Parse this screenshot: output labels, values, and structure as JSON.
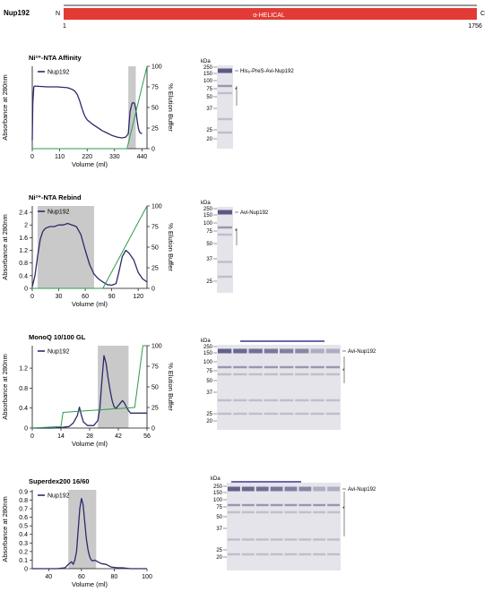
{
  "header": {
    "protein": "Nup192",
    "n_label": "N",
    "c_label": "C",
    "start": "1",
    "end": "1756",
    "domain_label": "α-HELICAL",
    "domain_color": "#e23b35"
  },
  "colors": {
    "trace": "#2b2a6a",
    "elution": "#2e9b4a",
    "shade": "#c9c9c9",
    "gel_band": "#4a4a7a",
    "fraction_bar": "#3b3590"
  },
  "chart_data": [
    {
      "type": "line",
      "title": "Ni²⁺-NTA Affinity",
      "xlabel": "Volume (ml)",
      "ylabel": "Absorbance at 280nm",
      "y2label": "% Elution Buffer",
      "legend": "Nup192",
      "legend_position": "top-left",
      "xlim": [
        0,
        460
      ],
      "xticks": [
        0,
        110,
        220,
        330,
        440
      ],
      "yticks_left": [],
      "ylim": [
        0,
        1
      ],
      "y2lim": [
        0,
        100
      ],
      "y2ticks": [
        0,
        25,
        50,
        75,
        100
      ],
      "shaded_regions": [
        [
          385,
          415
        ]
      ],
      "series": [
        {
          "name": "Nup192",
          "axis": "left",
          "x": [
            0,
            2,
            6,
            10,
            60,
            100,
            140,
            150,
            160,
            170,
            180,
            190,
            200,
            210,
            220,
            240,
            260,
            280,
            300,
            320,
            340,
            360,
            375,
            385,
            392,
            400,
            405,
            410,
            415,
            420,
            425,
            430,
            440
          ],
          "y": [
            0.1,
            0.55,
            0.75,
            0.76,
            0.75,
            0.75,
            0.74,
            0.73,
            0.72,
            0.7,
            0.66,
            0.58,
            0.48,
            0.4,
            0.35,
            0.3,
            0.26,
            0.22,
            0.19,
            0.16,
            0.14,
            0.13,
            0.14,
            0.18,
            0.45,
            0.55,
            0.56,
            0.55,
            0.48,
            0.35,
            0.25,
            0.2,
            0.18
          ]
        },
        {
          "name": "Elution",
          "axis": "right",
          "x": [
            0,
            380,
            460
          ],
          "y": [
            0,
            0,
            100
          ]
        }
      ]
    },
    {
      "type": "line",
      "title": "Ni²⁺-NTA Rebind",
      "xlabel": "Volume (ml)",
      "ylabel": "Absorbance at 280nm",
      "y2label": "% Elution Buffer",
      "legend": "Nup192",
      "legend_position": "top-left",
      "xlim": [
        0,
        130
      ],
      "xticks": [
        0,
        30,
        60,
        90,
        120
      ],
      "ylim": [
        0,
        2.6
      ],
      "yticks_left": [
        0,
        0.4,
        0.8,
        1.2,
        1.6,
        2.0,
        2.4
      ],
      "y2lim": [
        0,
        100
      ],
      "y2ticks": [
        0,
        25,
        50,
        75,
        100
      ],
      "shaded_regions": [
        [
          6,
          70
        ]
      ],
      "series": [
        {
          "name": "Nup192",
          "axis": "left",
          "x": [
            0,
            3,
            6,
            9,
            12,
            15,
            20,
            25,
            30,
            35,
            40,
            45,
            50,
            55,
            60,
            65,
            70,
            75,
            80,
            85,
            90,
            95,
            98,
            102,
            106,
            110,
            115,
            120,
            125,
            130
          ],
          "y": [
            0.05,
            0.4,
            1.0,
            1.55,
            1.8,
            1.9,
            1.95,
            1.95,
            2.0,
            2.0,
            2.05,
            2.0,
            1.95,
            1.7,
            1.2,
            0.75,
            0.45,
            0.3,
            0.2,
            0.12,
            0.1,
            0.15,
            0.5,
            1.0,
            1.2,
            1.1,
            0.9,
            0.5,
            0.3,
            0.2
          ]
        },
        {
          "name": "Elution",
          "axis": "right",
          "x": [
            0,
            80,
            130
          ],
          "y": [
            0,
            0,
            100
          ]
        }
      ]
    },
    {
      "type": "line",
      "title": "MonoQ 10/100 GL",
      "xlabel": "Volume (ml)",
      "ylabel": "Absorbance at 280nm",
      "y2label": "% Elution Buffer",
      "legend": "Nup192",
      "legend_position": "top-left",
      "xlim": [
        0,
        56
      ],
      "xticks": [
        0,
        14,
        28,
        42,
        56
      ],
      "ylim": [
        0,
        1.65
      ],
      "yticks_left": [
        0,
        0.4,
        0.8,
        1.2
      ],
      "y2lim": [
        0,
        100
      ],
      "y2ticks": [
        0,
        25,
        50,
        75,
        100
      ],
      "shaded_regions": [
        [
          32,
          47
        ]
      ],
      "series": [
        {
          "name": "Nup192",
          "axis": "left",
          "x": [
            0,
            5,
            10,
            14,
            18,
            20,
            22,
            23,
            24,
            25,
            27,
            30,
            32,
            33,
            34,
            35,
            36,
            37,
            38,
            39,
            40,
            41,
            42,
            43,
            44,
            45,
            46,
            47,
            48,
            50,
            52,
            54,
            56
          ],
          "y": [
            0.0,
            0.0,
            0.0,
            0.01,
            0.03,
            0.1,
            0.25,
            0.42,
            0.25,
            0.12,
            0.05,
            0.05,
            0.15,
            0.4,
            0.95,
            1.45,
            1.3,
            1.0,
            0.75,
            0.55,
            0.42,
            0.4,
            0.45,
            0.5,
            0.55,
            0.5,
            0.42,
            0.35,
            0.3,
            0.3,
            0.3,
            0.3,
            0.3
          ]
        },
        {
          "name": "Elution",
          "axis": "right",
          "x": [
            0,
            14,
            15,
            50,
            54,
            56
          ],
          "y": [
            0,
            2,
            19,
            25,
            100,
            100
          ]
        }
      ]
    },
    {
      "type": "line",
      "title": "Superdex200 16/60",
      "xlabel": "Volume (ml)",
      "ylabel": "Absorbance at 280nm",
      "legend": "Nup192",
      "legend_position": "top-left",
      "xlim": [
        30,
        100
      ],
      "xticks": [
        40,
        60,
        80,
        100
      ],
      "ylim": [
        0,
        0.92
      ],
      "yticks_left": [
        0,
        0.1,
        0.2,
        0.3,
        0.4,
        0.5,
        0.6,
        0.7,
        0.8,
        0.9
      ],
      "shaded_regions": [
        [
          52,
          69
        ]
      ],
      "series": [
        {
          "name": "Nup192",
          "axis": "left",
          "x": [
            30,
            45,
            50,
            52,
            54,
            55,
            56,
            57,
            58,
            59,
            60,
            61,
            62,
            63,
            64,
            65,
            66,
            67,
            68,
            70,
            72,
            75,
            78,
            82,
            85,
            90,
            95,
            100
          ],
          "y": [
            0.0,
            0.0,
            0.01,
            0.05,
            0.08,
            0.05,
            0.1,
            0.2,
            0.45,
            0.7,
            0.82,
            0.75,
            0.55,
            0.35,
            0.22,
            0.14,
            0.1,
            0.09,
            0.1,
            0.08,
            0.06,
            0.05,
            0.02,
            0.01,
            0.01,
            0.0,
            0.0,
            0.0
          ]
        }
      ]
    }
  ],
  "gels": [
    {
      "kda_header": "kDa",
      "markers": [
        "250",
        "150",
        "100",
        "75",
        "50",
        "37",
        "25",
        "20"
      ],
      "protein_label": "His₆-PreS-Avi-Nup192",
      "star": "*"
    },
    {
      "kda_header": "kDa",
      "markers": [
        "250",
        "150",
        "100",
        "75",
        "50",
        "37",
        "25"
      ],
      "protein_label": "Avi-Nup192",
      "star": "*"
    },
    {
      "kda_header": "kDa",
      "markers": [
        "250",
        "150",
        "100",
        "75",
        "50",
        "37",
        "25",
        "20"
      ],
      "protein_label": "Avi-Nup192",
      "star": "*"
    },
    {
      "kda_header": "kDa",
      "markers": [
        "250",
        "150",
        "100",
        "75",
        "50",
        "37",
        "25",
        "20"
      ],
      "protein_label": "Avi-Nup192",
      "star": "*"
    }
  ]
}
